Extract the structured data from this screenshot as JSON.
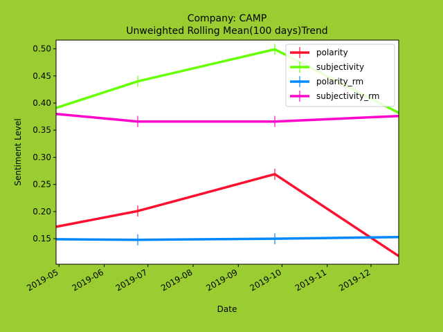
{
  "chart_data": {
    "type": "line",
    "title": "Company: CAMP",
    "subtitle": "Unweighted Rolling Mean(100 days)Trend",
    "xlabel": "Date",
    "ylabel": "Sentiment Level",
    "xlim": [
      "2019-04-29",
      "2019-12-20"
    ],
    "ylim": [
      0.103,
      0.516
    ],
    "x_ticks": [
      "2019-05-01",
      "2019-06-01",
      "2019-07-01",
      "2019-08-01",
      "2019-09-01",
      "2019-10-01",
      "2019-11-01",
      "2019-12-01"
    ],
    "x_tick_labels": [
      "2019-05",
      "2019-06",
      "2019-07",
      "2019-08",
      "2019-09",
      "2019-10",
      "2019-11",
      "2019-12"
    ],
    "y_ticks": [
      0.15,
      0.2,
      0.25,
      0.3,
      0.35,
      0.4,
      0.45,
      0.5
    ],
    "y_tick_labels": [
      "0.15",
      "0.20",
      "0.25",
      "0.30",
      "0.35",
      "0.40",
      "0.45",
      "0.50"
    ],
    "x": [
      "2019-04-29",
      "2019-06-24",
      "2019-09-26",
      "2019-12-20"
    ],
    "grid": false,
    "legend_position": "top-right",
    "series": [
      {
        "name": "polarity",
        "color": "#ff0f2f",
        "values": [
          0.172,
          0.201,
          0.269,
          0.118
        ]
      },
      {
        "name": "subjectivity",
        "color": "#66ff00",
        "values": [
          0.391,
          0.44,
          0.499,
          0.382
        ]
      },
      {
        "name": "polarity_rm",
        "color": "#0088ff",
        "values": [
          0.149,
          0.148,
          0.15,
          0.153
        ]
      },
      {
        "name": "subjectivity_rm",
        "color": "#ff00cc",
        "values": [
          0.38,
          0.366,
          0.366,
          0.376
        ]
      }
    ]
  }
}
